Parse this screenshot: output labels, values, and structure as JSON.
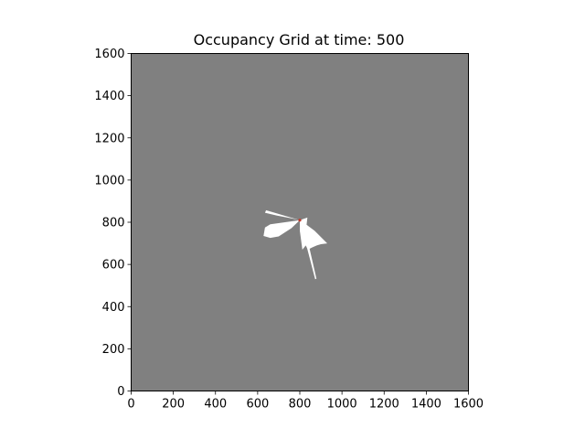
{
  "chart_data": {
    "type": "heatmap",
    "title": "Occupancy Grid at time: 500",
    "xlabel": "",
    "ylabel": "",
    "xlim": [
      0,
      1600
    ],
    "ylim": [
      0,
      1600
    ],
    "x_ticks": [
      "0",
      "200",
      "400",
      "600",
      "800",
      "1000",
      "1200",
      "1400",
      "1600"
    ],
    "y_ticks": [
      "0",
      "200",
      "400",
      "600",
      "800",
      "1000",
      "1200",
      "1400",
      "1600"
    ],
    "colors": {
      "unknown": "#808080",
      "free": "#ffffff",
      "robot": "#c0392b"
    },
    "robot_position": [
      800,
      810
    ],
    "free_regions": [
      [
        [
          800,
          810
        ],
        [
          640,
          857
        ],
        [
          635,
          845
        ],
        [
          690,
          832
        ],
        [
          760,
          818
        ]
      ],
      [
        [
          800,
          810
        ],
        [
          660,
          790
        ],
        [
          635,
          775
        ],
        [
          628,
          735
        ],
        [
          660,
          726
        ],
        [
          700,
          733
        ],
        [
          760,
          772
        ]
      ],
      [
        [
          800,
          810
        ],
        [
          836,
          822
        ],
        [
          832,
          788
        ],
        [
          870,
          760
        ],
        [
          930,
          700
        ],
        [
          900,
          696
        ],
        [
          880,
          690
        ],
        [
          857,
          680
        ],
        [
          838,
          670
        ],
        [
          828,
          690
        ],
        [
          812,
          670
        ],
        [
          800,
          760
        ]
      ],
      [
        [
          800,
          810
        ],
        [
          873,
          530
        ],
        [
          879,
          532
        ],
        [
          820,
          790
        ]
      ]
    ]
  }
}
